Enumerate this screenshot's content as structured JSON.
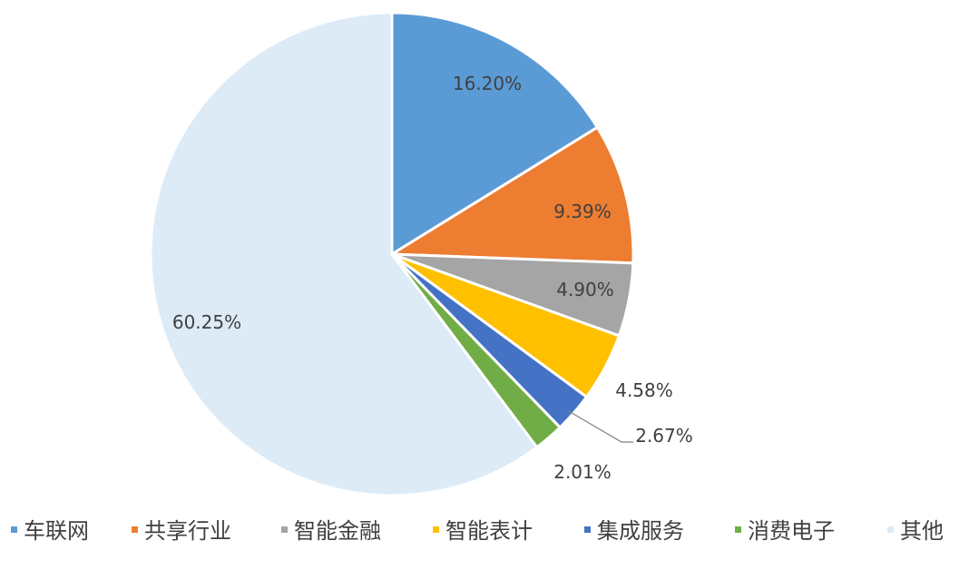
{
  "chart_data": {
    "type": "pie",
    "title": "",
    "slices": [
      {
        "name": "车联网",
        "value": 16.2,
        "label": "16.20%",
        "color": "#5B9BD5"
      },
      {
        "name": "共享行业",
        "value": 9.39,
        "label": "9.39%",
        "color": "#ED7D31"
      },
      {
        "name": "智能金融",
        "value": 4.9,
        "label": "4.90%",
        "color": "#A5A5A5"
      },
      {
        "name": "智能表计",
        "value": 4.58,
        "label": "4.58%",
        "color": "#FFC000"
      },
      {
        "name": "集成服务",
        "value": 2.67,
        "label": "2.67%",
        "color": "#4472C4"
      },
      {
        "name": "消费电子",
        "value": 2.01,
        "label": "2.01%",
        "color": "#70AD47"
      },
      {
        "name": "其他",
        "value": 60.25,
        "label": "60.25%",
        "color": "#DDEBF7"
      }
    ],
    "legend": {
      "position": "bottom"
    }
  }
}
